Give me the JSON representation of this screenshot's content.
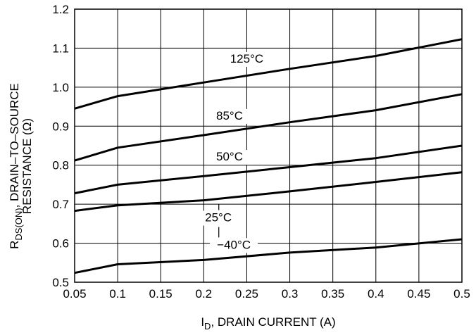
{
  "chart_data": {
    "type": "line",
    "xlabel": {
      "main": "I",
      "sub": "D",
      "rest": ", DRAIN CURRENT (A)"
    },
    "ylabel": {
      "line1_main": "R",
      "line1_sub": "DS(ON)",
      "line1_rest": ", DRAIN–TO–SOURCE",
      "line2": "RESISTANCE (Ω)"
    },
    "xlim": [
      0.05,
      0.5
    ],
    "ylim": [
      0.5,
      1.2
    ],
    "x_ticks": [
      0.05,
      0.1,
      0.15,
      0.2,
      0.25,
      0.3,
      0.35,
      0.4,
      0.45,
      0.5
    ],
    "x_tick_labels": [
      "0.05",
      "0.1",
      "0.15",
      "0.2",
      "0.25",
      "0.3",
      "0.35",
      "0.4",
      "0.45",
      "0.5"
    ],
    "y_ticks": [
      0.5,
      0.6,
      0.7,
      0.8,
      0.9,
      1.0,
      1.1,
      1.2
    ],
    "y_tick_labels": [
      "0.5",
      "0.6",
      "0.7",
      "0.8",
      "0.9",
      "1.0",
      "1.1",
      "1.2"
    ],
    "grid": true,
    "x": [
      0.05,
      0.1,
      0.2,
      0.3,
      0.4,
      0.5
    ],
    "series": [
      {
        "name": "125°C",
        "values": [
          0.945,
          0.977,
          1.012,
          1.047,
          1.08,
          1.123
        ]
      },
      {
        "name": "85°C",
        "values": [
          0.812,
          0.845,
          0.877,
          0.91,
          0.941,
          0.982
        ]
      },
      {
        "name": "50°C",
        "values": [
          0.728,
          0.75,
          0.772,
          0.795,
          0.818,
          0.85
        ]
      },
      {
        "name": "25°C",
        "values": [
          0.683,
          0.697,
          0.71,
          0.733,
          0.757,
          0.782
        ]
      },
      {
        "name": "−40°C",
        "values": [
          0.524,
          0.546,
          0.557,
          0.576,
          0.589,
          0.61
        ]
      }
    ]
  }
}
